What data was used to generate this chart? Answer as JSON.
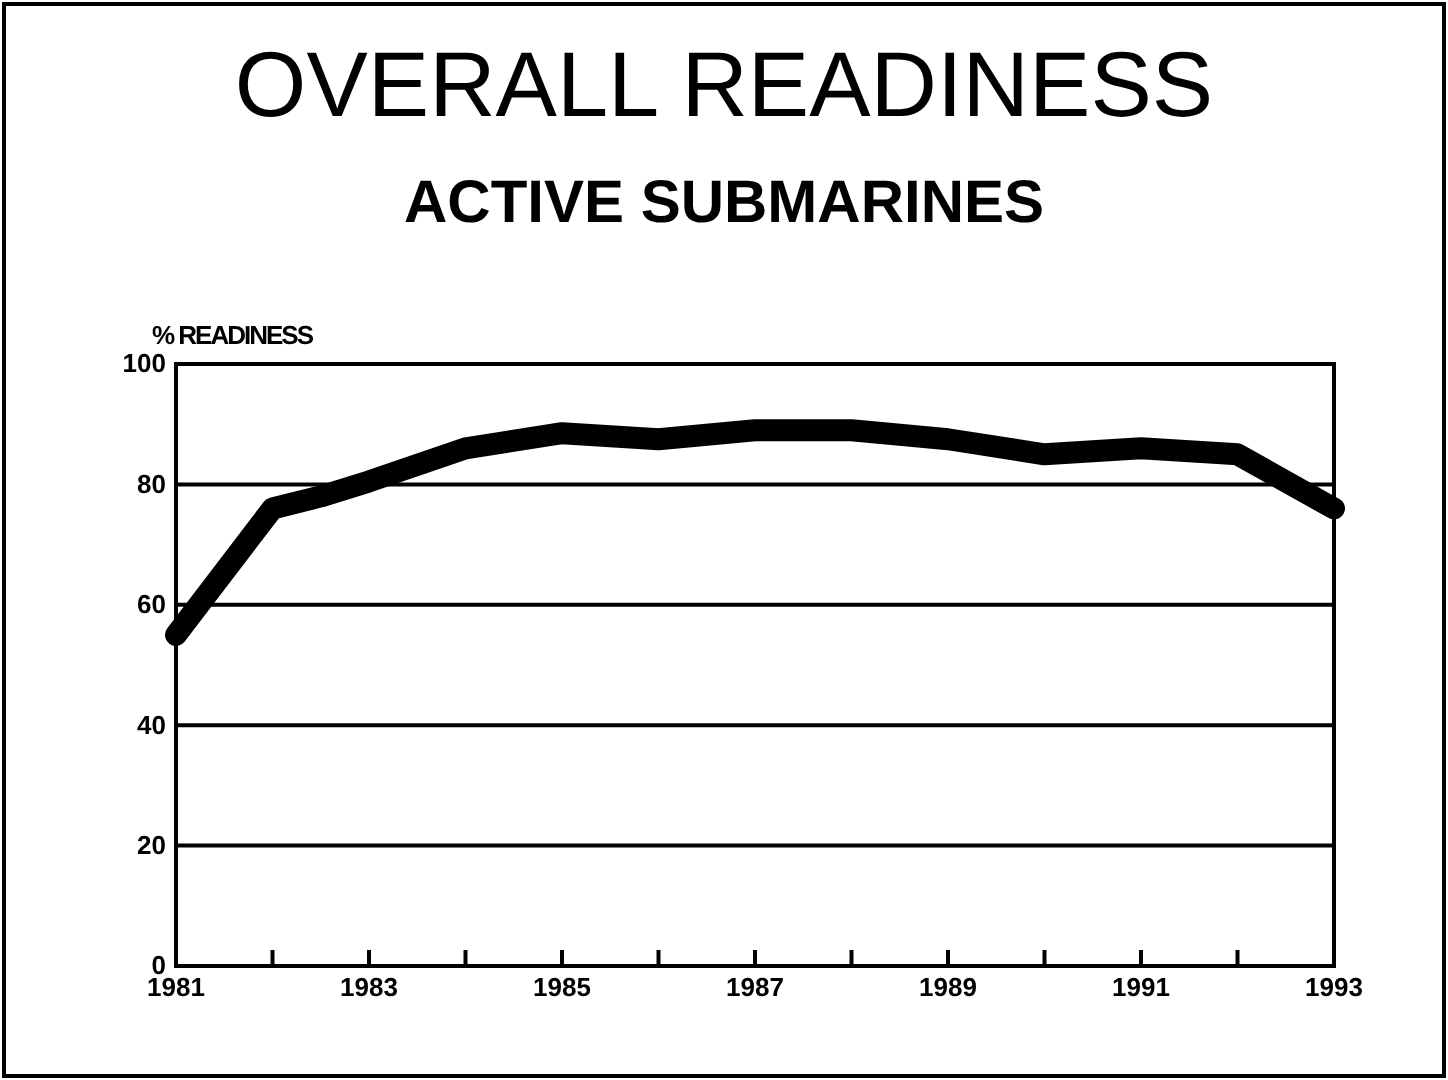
{
  "chart_data": {
    "type": "line",
    "title": "OVERALL READINESS",
    "subtitle": "ACTIVE SUBMARINES",
    "ylabel": "% READINESS",
    "x": [
      1981,
      1982,
      1982.5,
      1983,
      1984,
      1985,
      1986,
      1987,
      1988,
      1989,
      1990,
      1991,
      1992,
      1993
    ],
    "series": [
      {
        "color": "#000000",
        "values": [
          55,
          76,
          78,
          80.5,
          86,
          88.5,
          87.5,
          89,
          89,
          87.5,
          85,
          86,
          85,
          76
        ]
      }
    ],
    "xlim": [
      1981,
      1993
    ],
    "xticks": [
      1981,
      {
        "value": 1982,
        "label": null
      },
      1983,
      {
        "value": 1984,
        "label": null
      },
      1985,
      {
        "value": 1986,
        "label": null
      },
      1987,
      {
        "value": 1988,
        "label": null
      },
      1989,
      {
        "value": 1990,
        "label": null
      },
      1991,
      {
        "value": 1992,
        "label": null
      },
      1993
    ],
    "ylim": [
      0,
      100
    ],
    "yticks": [
      0,
      20,
      40,
      60,
      80,
      100
    ],
    "grid": "y",
    "marker": "none",
    "line_style": "solid"
  }
}
